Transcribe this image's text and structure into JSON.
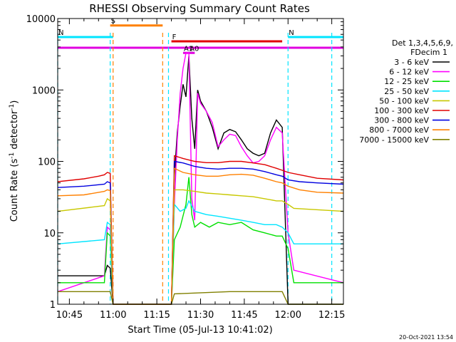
{
  "chart_data": {
    "type": "line",
    "title": "RHESSI Observing Summary Count Rates",
    "xlabel": "Start Time (05-Jul-13 10:41:02)",
    "ylabel": "Count Rate (s⁻¹ detector⁻¹)",
    "ylabel_parts": {
      "main": "Count Rate (s",
      "sup1": "-1",
      "mid": " detector",
      "sup2": "-1",
      "end": ")"
    },
    "footer": "20-Oct-2021 13:54",
    "y_scale": "log",
    "xlim": [
      "10:41",
      "12:19"
    ],
    "ylim": [
      1,
      10000
    ],
    "x_ticks": [
      "10:45",
      "11:00",
      "11:15",
      "11:30",
      "11:45",
      "12:00",
      "12:15"
    ],
    "y_ticks": [
      "1",
      "10",
      "100",
      "1000",
      "10000"
    ],
    "legend": {
      "placement": "right",
      "header": [
        "Det 1,3,4,5,6,9,",
        "FDecim 1"
      ],
      "entries": [
        {
          "label": "3 - 6 keV",
          "color": "#000000"
        },
        {
          "label": "6 - 12 keV",
          "color": "#ff00ff"
        },
        {
          "label": "12 - 25 keV",
          "color": "#00e000"
        },
        {
          "label": "25 - 50 keV",
          "color": "#00e5ff"
        },
        {
          "label": "50 - 100 keV",
          "color": "#c8c800"
        },
        {
          "label": "100 - 300 keV",
          "color": "#e00000"
        },
        {
          "label": "300 - 800 keV",
          "color": "#0000e0"
        },
        {
          "label": "800 - 7000 keV",
          "color": "#ff8000"
        },
        {
          "label": "7000 - 15000 keV",
          "color": "#808000"
        }
      ]
    },
    "flags": [
      {
        "label": "S",
        "color": "#ff8000",
        "start": "10:59",
        "end": "11:17",
        "level": 8000
      },
      {
        "label": "N",
        "color": "#00e5ff",
        "start": "10:41",
        "end": "11:00",
        "level": 5500
      },
      {
        "label": "N",
        "color": "#00e5ff",
        "start": "12:00",
        "end": "12:19",
        "level": 5500
      },
      {
        "label": "F",
        "color": "#e00000",
        "start": "11:20",
        "end": "11:58",
        "level": 4800
      },
      {
        "label": "",
        "color": "#e000e0",
        "start": "10:41",
        "end": "12:19",
        "level": 3900
      },
      {
        "label": "A1",
        "color": "#e000e0",
        "start": "11:24",
        "end": "11:26",
        "level": 3300
      },
      {
        "label": "A0",
        "color": "#e000e0",
        "start": "11:26",
        "end": "11:28",
        "level": 3300
      }
    ],
    "night_markers": [
      {
        "time": "10:41",
        "color": "#00e5ff"
      },
      {
        "time": "10:59",
        "color": "#00e5ff"
      },
      {
        "time": "11:00",
        "color": "#ff8000"
      },
      {
        "time": "11:17",
        "color": "#ff8000"
      },
      {
        "time": "11:19",
        "color": "#00e5ff"
      },
      {
        "time": "12:00",
        "color": "#00e5ff"
      },
      {
        "time": "12:15",
        "color": "#00e5ff"
      }
    ],
    "series": [
      {
        "name": "3 - 6 keV",
        "color": "#000000",
        "points": [
          [
            "10:41",
            2.5
          ],
          [
            "10:57",
            2.5
          ],
          [
            "10:58",
            3.5
          ],
          [
            "10:59",
            3.2
          ],
          [
            "11:00",
            1
          ],
          [
            "11:20",
            1
          ],
          [
            "11:21",
            60
          ],
          [
            "11:22",
            250
          ],
          [
            "11:23",
            600
          ],
          [
            "11:24",
            1200
          ],
          [
            "11:25",
            800
          ],
          [
            "11:26",
            3000
          ],
          [
            "11:27",
            400
          ],
          [
            "11:28",
            150
          ],
          [
            "11:29",
            1000
          ],
          [
            "11:30",
            700
          ],
          [
            "11:32",
            500
          ],
          [
            "11:34",
            300
          ],
          [
            "11:36",
            150
          ],
          [
            "11:38",
            250
          ],
          [
            "11:40",
            280
          ],
          [
            "11:42",
            260
          ],
          [
            "11:44",
            200
          ],
          [
            "11:46",
            150
          ],
          [
            "11:48",
            130
          ],
          [
            "11:50",
            120
          ],
          [
            "11:52",
            130
          ],
          [
            "11:54",
            250
          ],
          [
            "11:56",
            380
          ],
          [
            "11:58",
            300
          ],
          [
            "12:00",
            1
          ],
          [
            "12:19",
            1
          ]
        ]
      },
      {
        "name": "6 - 12 keV",
        "color": "#ff00ff",
        "points": [
          [
            "10:41",
            1.5
          ],
          [
            "10:57",
            2.5
          ],
          [
            "10:58",
            12
          ],
          [
            "10:59",
            11
          ],
          [
            "11:00",
            1
          ],
          [
            "11:20",
            1
          ],
          [
            "11:21",
            25
          ],
          [
            "11:22",
            200
          ],
          [
            "11:23",
            900
          ],
          [
            "11:24",
            2000
          ],
          [
            "11:25",
            3300
          ],
          [
            "11:26",
            3300
          ],
          [
            "11:27",
            30
          ],
          [
            "11:28",
            15
          ],
          [
            "11:29",
            900
          ],
          [
            "11:30",
            650
          ],
          [
            "11:32",
            500
          ],
          [
            "11:34",
            350
          ],
          [
            "11:36",
            160
          ],
          [
            "11:38",
            200
          ],
          [
            "11:40",
            240
          ],
          [
            "11:42",
            230
          ],
          [
            "11:44",
            160
          ],
          [
            "11:46",
            120
          ],
          [
            "11:48",
            95
          ],
          [
            "11:50",
            100
          ],
          [
            "11:52",
            120
          ],
          [
            "11:54",
            200
          ],
          [
            "11:56",
            300
          ],
          [
            "11:58",
            250
          ],
          [
            "12:00",
            10
          ],
          [
            "12:02",
            3
          ],
          [
            "12:19",
            2
          ]
        ]
      },
      {
        "name": "12 - 25 keV",
        "color": "#00e000",
        "points": [
          [
            "10:41",
            2
          ],
          [
            "10:57",
            2
          ],
          [
            "10:58",
            10
          ],
          [
            "10:59",
            9
          ],
          [
            "11:00",
            1
          ],
          [
            "11:20",
            1
          ],
          [
            "11:21",
            8
          ],
          [
            "11:23",
            12
          ],
          [
            "11:25",
            25
          ],
          [
            "11:26",
            60
          ],
          [
            "11:27",
            18
          ],
          [
            "11:28",
            12
          ],
          [
            "11:30",
            14
          ],
          [
            "11:33",
            12
          ],
          [
            "11:36",
            14
          ],
          [
            "11:40",
            13
          ],
          [
            "11:44",
            14
          ],
          [
            "11:48",
            11
          ],
          [
            "11:52",
            10
          ],
          [
            "11:56",
            9
          ],
          [
            "11:58",
            9
          ],
          [
            "12:00",
            6
          ],
          [
            "12:02",
            2
          ],
          [
            "12:19",
            2
          ]
        ]
      },
      {
        "name": "25 - 50 keV",
        "color": "#00e5ff",
        "points": [
          [
            "10:41",
            7
          ],
          [
            "10:57",
            8
          ],
          [
            "10:58",
            14
          ],
          [
            "10:59",
            13
          ],
          [
            "11:00",
            1
          ],
          [
            "11:20",
            1
          ],
          [
            "11:21",
            25
          ],
          [
            "11:23",
            20
          ],
          [
            "11:25",
            22
          ],
          [
            "11:26",
            28
          ],
          [
            "11:28",
            20
          ],
          [
            "11:32",
            18
          ],
          [
            "11:36",
            17
          ],
          [
            "11:40",
            16
          ],
          [
            "11:44",
            15
          ],
          [
            "11:48",
            14
          ],
          [
            "11:52",
            13
          ],
          [
            "11:56",
            13
          ],
          [
            "11:58",
            12
          ],
          [
            "12:00",
            10
          ],
          [
            "12:02",
            7
          ],
          [
            "12:19",
            7
          ]
        ]
      },
      {
        "name": "50 - 100 keV",
        "color": "#c8c800",
        "points": [
          [
            "10:41",
            20
          ],
          [
            "10:57",
            24
          ],
          [
            "10:58",
            30
          ],
          [
            "10:59",
            28
          ],
          [
            "11:00",
            1
          ],
          [
            "11:20",
            1
          ],
          [
            "11:21",
            40
          ],
          [
            "11:24",
            40
          ],
          [
            "11:28",
            38
          ],
          [
            "11:32",
            36
          ],
          [
            "11:36",
            35
          ],
          [
            "11:40",
            34
          ],
          [
            "11:44",
            33
          ],
          [
            "11:48",
            32
          ],
          [
            "11:52",
            30
          ],
          [
            "11:56",
            28
          ],
          [
            "11:58",
            28
          ],
          [
            "12:00",
            25
          ],
          [
            "12:02",
            22
          ],
          [
            "12:19",
            20
          ]
        ]
      },
      {
        "name": "100 - 300 keV",
        "color": "#e00000",
        "points": [
          [
            "10:41",
            52
          ],
          [
            "10:50",
            57
          ],
          [
            "10:55",
            62
          ],
          [
            "10:57",
            65
          ],
          [
            "10:58",
            70
          ],
          [
            "10:59",
            68
          ],
          [
            "11:00",
            1
          ],
          [
            "11:20",
            1
          ],
          [
            "11:21",
            120
          ],
          [
            "11:24",
            110
          ],
          [
            "11:28",
            100
          ],
          [
            "11:32",
            96
          ],
          [
            "11:36",
            96
          ],
          [
            "11:40",
            100
          ],
          [
            "11:44",
            100
          ],
          [
            "11:48",
            95
          ],
          [
            "11:52",
            90
          ],
          [
            "11:56",
            80
          ],
          [
            "11:58",
            75
          ],
          [
            "12:00",
            70
          ],
          [
            "12:04",
            65
          ],
          [
            "12:10",
            58
          ],
          [
            "12:19",
            55
          ]
        ]
      },
      {
        "name": "300 - 800 keV",
        "color": "#0000e0",
        "points": [
          [
            "10:41",
            43
          ],
          [
            "10:50",
            45
          ],
          [
            "10:57",
            48
          ],
          [
            "10:58",
            52
          ],
          [
            "10:59",
            50
          ],
          [
            "11:00",
            1
          ],
          [
            "11:20",
            1
          ],
          [
            "11:21",
            100
          ],
          [
            "11:24",
            95
          ],
          [
            "11:28",
            85
          ],
          [
            "11:32",
            80
          ],
          [
            "11:36",
            78
          ],
          [
            "11:40",
            80
          ],
          [
            "11:44",
            80
          ],
          [
            "11:48",
            78
          ],
          [
            "11:52",
            72
          ],
          [
            "11:56",
            65
          ],
          [
            "11:58",
            62
          ],
          [
            "12:00",
            55
          ],
          [
            "12:04",
            52
          ],
          [
            "12:10",
            50
          ],
          [
            "12:19",
            48
          ]
        ]
      },
      {
        "name": "800 - 7000 keV",
        "color": "#ff8000",
        "points": [
          [
            "10:41",
            33
          ],
          [
            "10:50",
            34
          ],
          [
            "10:57",
            38
          ],
          [
            "10:58",
            40
          ],
          [
            "10:59",
            39
          ],
          [
            "11:00",
            1
          ],
          [
            "11:20",
            1
          ],
          [
            "11:21",
            80
          ],
          [
            "11:24",
            70
          ],
          [
            "11:28",
            65
          ],
          [
            "11:32",
            62
          ],
          [
            "11:36",
            62
          ],
          [
            "11:40",
            65
          ],
          [
            "11:44",
            66
          ],
          [
            "11:48",
            64
          ],
          [
            "11:52",
            58
          ],
          [
            "11:56",
            52
          ],
          [
            "11:58",
            50
          ],
          [
            "12:00",
            45
          ],
          [
            "12:04",
            40
          ],
          [
            "12:10",
            37
          ],
          [
            "12:19",
            36
          ]
        ]
      },
      {
        "name": "7000 - 15000 keV",
        "color": "#808000",
        "points": [
          [
            "10:41",
            1.5
          ],
          [
            "10:57",
            1.5
          ],
          [
            "10:59",
            1.5
          ],
          [
            "11:00",
            1
          ],
          [
            "11:20",
            1
          ],
          [
            "11:21",
            1.4
          ],
          [
            "11:40",
            1.5
          ],
          [
            "11:58",
            1.5
          ],
          [
            "12:00",
            1
          ],
          [
            "12:19",
            1
          ]
        ]
      }
    ]
  }
}
